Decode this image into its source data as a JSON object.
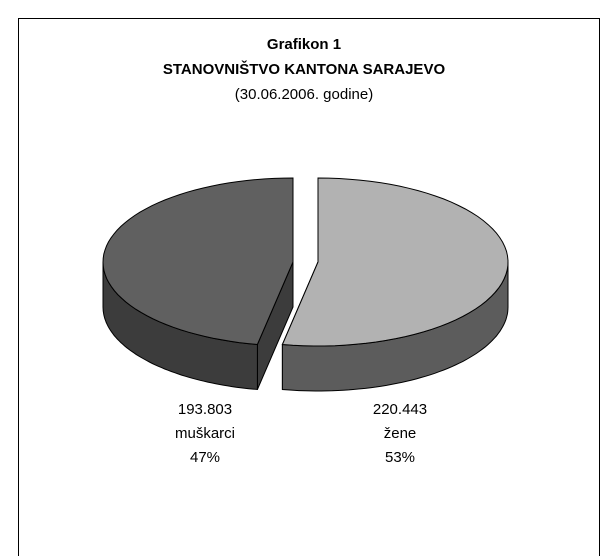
{
  "chart_data": {
    "type": "pie3d",
    "title": "Grafikon 1",
    "subtitle": "STANOVNIŠTVO KANTONA SARAJEVO",
    "date_note": "(30.06.2006. godine)",
    "categories": [
      "žene",
      "muškarci"
    ],
    "values": [
      53,
      47
    ],
    "value_labels": [
      "53%",
      "47%"
    ],
    "counts": [
      220443,
      193803
    ],
    "count_labels": [
      "220.443",
      "193.803"
    ],
    "colors": [
      "#b2b2b2",
      "#606060"
    ],
    "wall_colors": [
      "#5c5c5c",
      "#3c3c3c"
    ]
  }
}
